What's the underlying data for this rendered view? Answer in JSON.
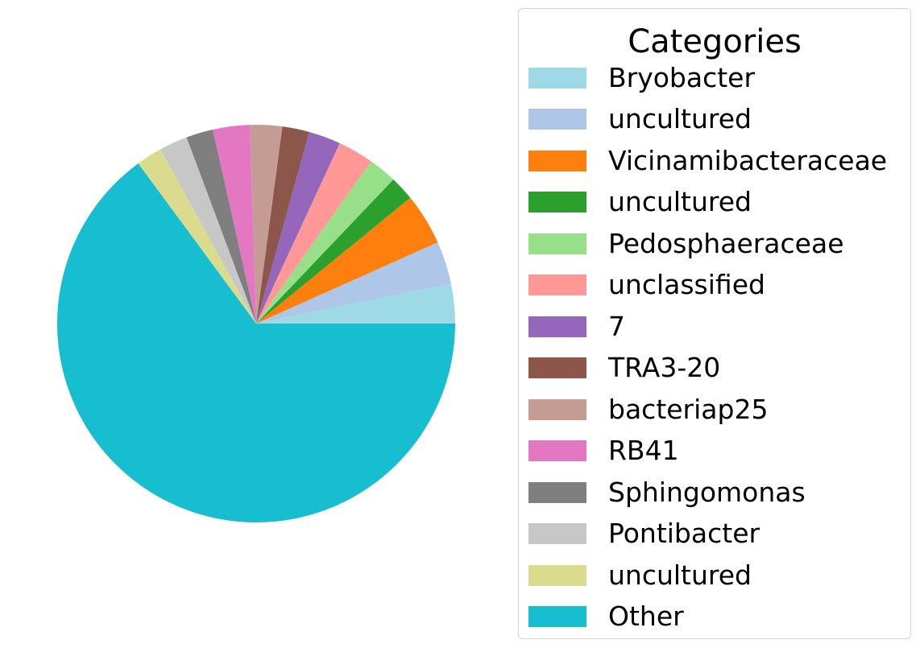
{
  "chart_data": {
    "type": "pie",
    "title": "",
    "legend": {
      "title": "Categories",
      "placement": "right"
    },
    "start_angle_deg": 0,
    "direction": "counterclockwise",
    "slices": [
      {
        "label": "Bryobacter",
        "value": 3.2,
        "color": "#9edae5"
      },
      {
        "label": "uncultured",
        "value": 3.5,
        "color": "#aec7e8"
      },
      {
        "label": "Vicinamibacteraceae",
        "value": 4.2,
        "color": "#ff7f0e"
      },
      {
        "label": "uncultured",
        "value": 2.0,
        "color": "#2ca02c"
      },
      {
        "label": "Pedosphaeraceae",
        "value": 2.3,
        "color": "#98df8a"
      },
      {
        "label": "unclassified",
        "value": 2.9,
        "color": "#ff9896"
      },
      {
        "label": "7",
        "value": 2.6,
        "color": "#9467bd"
      },
      {
        "label": "TRA3-20",
        "value": 2.2,
        "color": "#8c564b"
      },
      {
        "label": "bacteriap25",
        "value": 2.6,
        "color": "#c49c94"
      },
      {
        "label": "RB41",
        "value": 3.0,
        "color": "#e377c2"
      },
      {
        "label": "Sphingomonas",
        "value": 2.2,
        "color": "#7f7f7f"
      },
      {
        "label": "Pontibacter",
        "value": 2.3,
        "color": "#c7c7c7"
      },
      {
        "label": "uncultured",
        "value": 2.1,
        "color": "#dbdb8d"
      },
      {
        "label": "Other",
        "value": 64.9,
        "color": "#17becf"
      }
    ]
  }
}
